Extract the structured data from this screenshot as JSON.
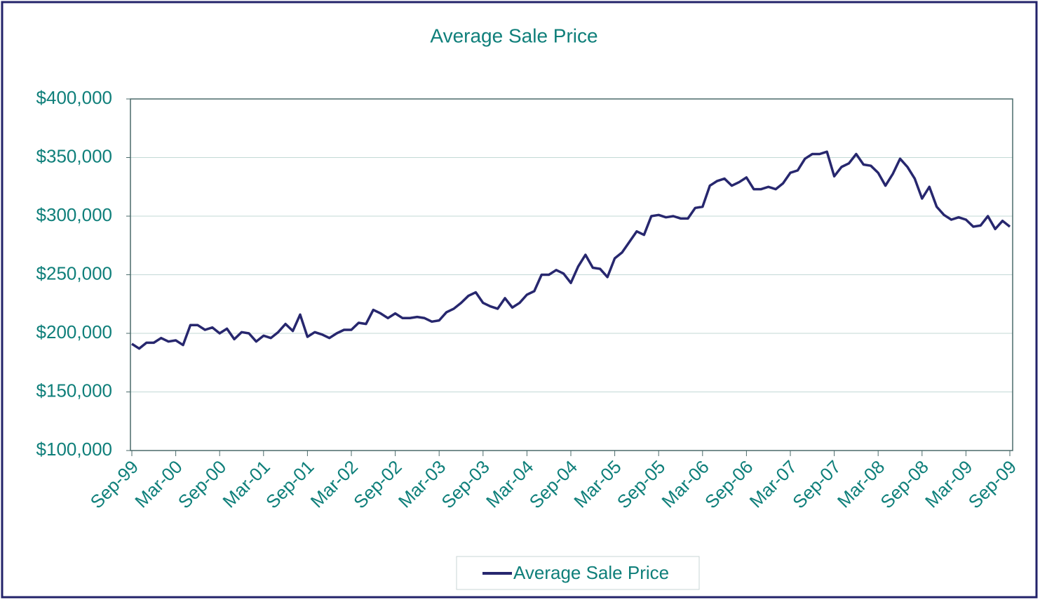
{
  "chart_data": {
    "type": "line",
    "title": "Average Sale Price",
    "categories": [
      "Sep-99",
      null,
      null,
      null,
      null,
      null,
      "Mar-00",
      null,
      null,
      null,
      null,
      null,
      "Sep-00",
      null,
      null,
      null,
      null,
      null,
      "Mar-01",
      null,
      null,
      null,
      null,
      null,
      "Sep-01",
      null,
      null,
      null,
      null,
      null,
      "Mar-02",
      null,
      null,
      null,
      null,
      null,
      "Sep-02",
      null,
      null,
      null,
      null,
      null,
      "Mar-03",
      null,
      null,
      null,
      null,
      null,
      "Sep-03",
      null,
      null,
      null,
      null,
      null,
      "Mar-04",
      null,
      null,
      null,
      null,
      null,
      "Sep-04",
      null,
      null,
      null,
      null,
      null,
      "Mar-05",
      null,
      null,
      null,
      null,
      null,
      "Sep-05",
      null,
      null,
      null,
      null,
      null,
      "Mar-06",
      null,
      null,
      null,
      null,
      null,
      "Sep-06",
      null,
      null,
      null,
      null,
      null,
      "Mar-07",
      null,
      null,
      null,
      null,
      null,
      "Sep-07",
      null,
      null,
      null,
      null,
      null,
      "Mar-08",
      null,
      null,
      null,
      null,
      null,
      "Sep-08",
      null,
      null,
      null,
      null,
      null,
      "Mar-09",
      null,
      null,
      null,
      null,
      null,
      "Sep-09"
    ],
    "series": [
      {
        "name": "Average Sale Price",
        "color": "#27276e",
        "values": [
          191000,
          187000,
          192000,
          192000,
          196000,
          193000,
          194000,
          190000,
          207000,
          207000,
          203000,
          205000,
          200000,
          204000,
          195000,
          201000,
          200000,
          193000,
          198000,
          196000,
          201000,
          208000,
          202000,
          216000,
          197000,
          201000,
          199000,
          196000,
          200000,
          203000,
          203000,
          209000,
          208000,
          220000,
          217000,
          213000,
          217000,
          213000,
          213000,
          214000,
          213000,
          210000,
          211000,
          218000,
          221000,
          226000,
          232000,
          235000,
          226000,
          223000,
          221000,
          230000,
          222000,
          226000,
          233000,
          236000,
          250000,
          250000,
          254000,
          251000,
          243000,
          257000,
          267000,
          256000,
          255000,
          248000,
          264000,
          269000,
          278000,
          287000,
          284000,
          300000,
          301000,
          299000,
          300000,
          298000,
          298000,
          307000,
          308000,
          326000,
          330000,
          332000,
          326000,
          329000,
          333000,
          323000,
          323000,
          325000,
          323000,
          328000,
          337000,
          339000,
          349000,
          353000,
          353000,
          355000,
          334000,
          342000,
          345000,
          353000,
          344000,
          343000,
          337000,
          326000,
          336000,
          349000,
          342000,
          332000,
          315000,
          325000,
          308000,
          301000,
          297000,
          299000,
          297000,
          291000,
          292000,
          300000,
          289000,
          296000,
          291000
        ]
      }
    ],
    "ylim": [
      100000,
      400000
    ],
    "yticks": [
      {
        "value": 100000,
        "label": "$100,000"
      },
      {
        "value": 150000,
        "label": "$150,000"
      },
      {
        "value": 200000,
        "label": "$200,000"
      },
      {
        "value": 250000,
        "label": "$250,000"
      },
      {
        "value": 300000,
        "label": "$300,000"
      },
      {
        "value": 350000,
        "label": "$350,000"
      },
      {
        "value": 400000,
        "label": "$400,000"
      }
    ],
    "grid": true
  }
}
